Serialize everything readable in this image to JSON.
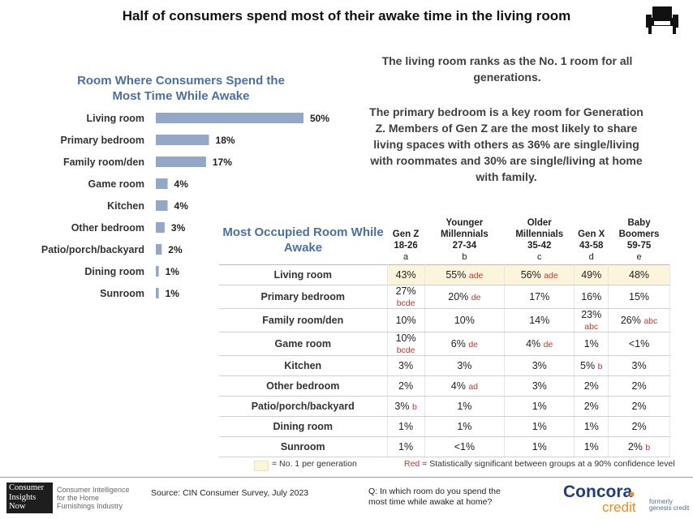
{
  "title": "Half of consumers spend most of their awake time in the living room",
  "chart_data": {
    "type": "bar",
    "orientation": "horizontal",
    "title": "Room Where Consumers Spend the Most Time While Awake",
    "categories": [
      "Living room",
      "Primary bedroom",
      "Family room/den",
      "Game room",
      "Kitchen",
      "Other bedroom",
      "Patio/porch/backyard",
      "Dining room",
      "Sunroom"
    ],
    "values": [
      50,
      18,
      17,
      4,
      4,
      3,
      2,
      1,
      1
    ],
    "value_labels": [
      "50%",
      "18%",
      "17%",
      "4%",
      "4%",
      "3%",
      "2%",
      "1%",
      "1%"
    ],
    "unit": "%",
    "xlim": [
      0,
      50
    ],
    "bar_color": "#93a8c6",
    "grid": false,
    "legend": "none"
  },
  "insights": [
    "The living room ranks as the No. 1 room for all generations.",
    "The primary bedroom is a key room for Generation Z. Members of Gen Z are the most likely to share living spaces with others as 36% are single/living with roommates and 30% are single/living at home with family."
  ],
  "table": {
    "title": "Most Occupied Room While Awake",
    "columns": [
      {
        "name": "Gen Z",
        "ages": "18-26",
        "letter": "a"
      },
      {
        "name": "Younger Millennials",
        "ages": "27-34",
        "letter": "b"
      },
      {
        "name": "Older Millennials",
        "ages": "35-42",
        "letter": "c"
      },
      {
        "name": "Gen X",
        "ages": "43-58",
        "letter": "d"
      },
      {
        "name": "Baby Boomers",
        "ages": "59-75",
        "letter": "e"
      }
    ],
    "rows": [
      {
        "label": "Living room",
        "highlight": true,
        "cells": [
          {
            "v": "43%",
            "s": ""
          },
          {
            "v": "55%",
            "s": "ade"
          },
          {
            "v": "56%",
            "s": "ade"
          },
          {
            "v": "49%",
            "s": ""
          },
          {
            "v": "48%",
            "s": ""
          }
        ]
      },
      {
        "label": "Primary bedroom",
        "highlight": false,
        "cells": [
          {
            "v": "27%",
            "s": "bcde"
          },
          {
            "v": "20%",
            "s": "de"
          },
          {
            "v": "17%",
            "s": ""
          },
          {
            "v": "16%",
            "s": ""
          },
          {
            "v": "15%",
            "s": ""
          }
        ]
      },
      {
        "label": "Family room/den",
        "highlight": false,
        "cells": [
          {
            "v": "10%",
            "s": ""
          },
          {
            "v": "10%",
            "s": ""
          },
          {
            "v": "14%",
            "s": ""
          },
          {
            "v": "23%",
            "s": "abc"
          },
          {
            "v": "26%",
            "s": "abc"
          }
        ]
      },
      {
        "label": "Game room",
        "highlight": false,
        "cells": [
          {
            "v": "10%",
            "s": "bcde"
          },
          {
            "v": "6%",
            "s": "de"
          },
          {
            "v": "4%",
            "s": "de"
          },
          {
            "v": "1%",
            "s": ""
          },
          {
            "v": "<1%",
            "s": ""
          }
        ]
      },
      {
        "label": "Kitchen",
        "highlight": false,
        "cells": [
          {
            "v": "3%",
            "s": ""
          },
          {
            "v": "3%",
            "s": ""
          },
          {
            "v": "3%",
            "s": ""
          },
          {
            "v": "5%",
            "s": "b"
          },
          {
            "v": "3%",
            "s": ""
          }
        ]
      },
      {
        "label": "Other bedroom",
        "highlight": false,
        "cells": [
          {
            "v": "2%",
            "s": ""
          },
          {
            "v": "4%",
            "s": "ad"
          },
          {
            "v": "3%",
            "s": ""
          },
          {
            "v": "2%",
            "s": ""
          },
          {
            "v": "2%",
            "s": ""
          }
        ]
      },
      {
        "label": "Patio/porch/backyard",
        "highlight": false,
        "cells": [
          {
            "v": "3%",
            "s": "b"
          },
          {
            "v": "1%",
            "s": ""
          },
          {
            "v": "1%",
            "s": ""
          },
          {
            "v": "2%",
            "s": ""
          },
          {
            "v": "2%",
            "s": ""
          }
        ]
      },
      {
        "label": "Dining room",
        "highlight": false,
        "cells": [
          {
            "v": "1%",
            "s": ""
          },
          {
            "v": "1%",
            "s": ""
          },
          {
            "v": "1%",
            "s": ""
          },
          {
            "v": "1%",
            "s": ""
          },
          {
            "v": "2%",
            "s": ""
          }
        ]
      },
      {
        "label": "Sunroom",
        "highlight": false,
        "cells": [
          {
            "v": "1%",
            "s": ""
          },
          {
            "v": "<1%",
            "s": ""
          },
          {
            "v": "1%",
            "s": ""
          },
          {
            "v": "1%",
            "s": ""
          },
          {
            "v": "2%",
            "s": "b"
          }
        ]
      }
    ],
    "highlight_color": "#fdf4dc",
    "significance_color": "#c0392b"
  },
  "legend": {
    "highlight_text": "= No. 1 per generation",
    "red_word": "Red",
    "red_text": " = Statistically significant between groups at a 90% confidence level"
  },
  "footer": {
    "logo_lines": [
      "Consumer",
      "Insights",
      "Now"
    ],
    "logo_tagline": [
      "Consumer Intelligence",
      "for the Home",
      "Furnishings Industry"
    ],
    "source": "Source: CIN Consumer Survey, July 2023",
    "question_lines": [
      "Q: In which room do you spend the",
      "most time while awake at home?"
    ],
    "brand_main": "Concora",
    "brand_sub": "credit",
    "formerly": [
      "formerly",
      "genesis credit"
    ]
  }
}
